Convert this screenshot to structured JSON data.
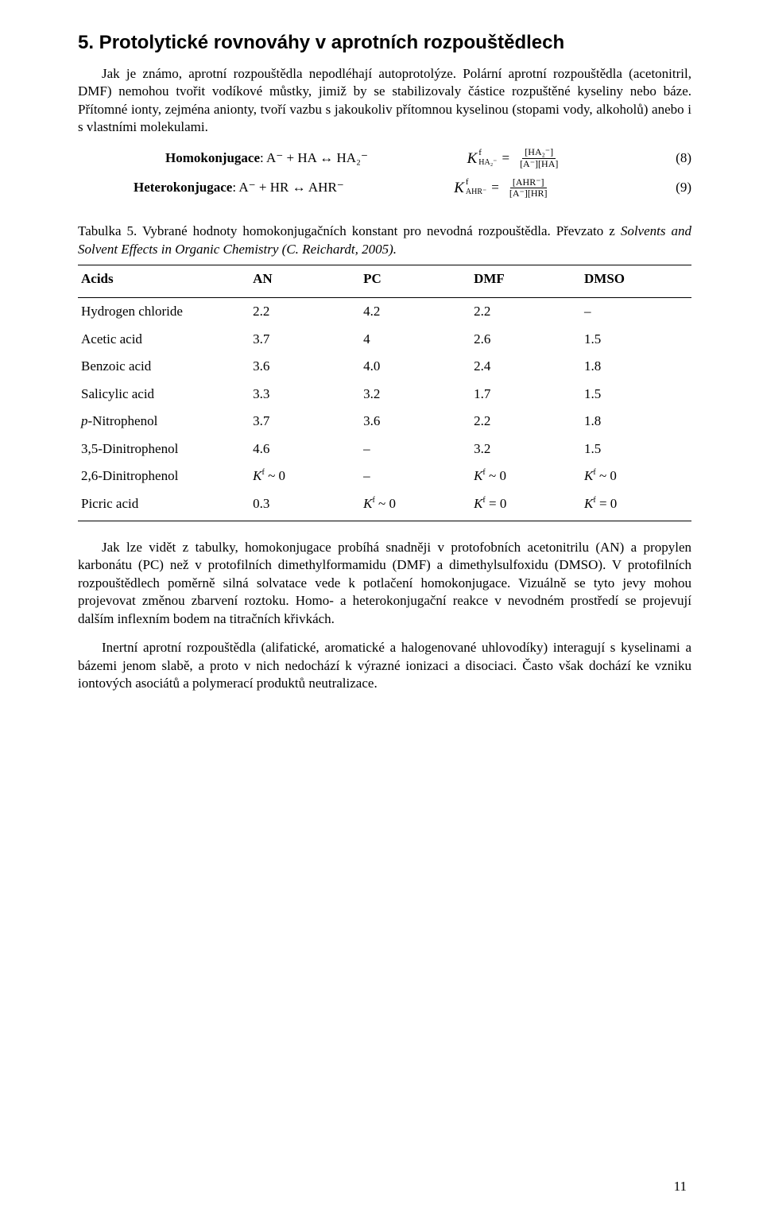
{
  "heading": "5. Protolytické rovnováhy v aprotních rozpouštědlech",
  "p1": "Jak je známo, aprotní rozpouštědla nepodléhají autoprotolýze. Polární aprotní rozpouštědla (acetonitril, DMF) nemohou tvořit vodíkové můstky, jimiž by se stabilizovaly částice rozpuštěné kyseliny nebo báze. Přítomné ionty, zejména anionty, tvoří vazbu s jakoukoliv přítomnou kyselinou (stopami vody, alkoholů) anebo i s vlastními molekulami.",
  "eq1": {
    "label": "Homokonjugace",
    "lhs": ": A⁻ + HA ↔ HA₂⁻",
    "k_sub": "HA₂⁻",
    "num": "[HA₂⁻]",
    "den": "[A⁻][HA]",
    "tag": "(8)"
  },
  "eq2": {
    "label": "Heterokonjugace",
    "lhs": ": A⁻ + HR ↔ AHR⁻",
    "k_sub": "AHR⁻",
    "num": "[AHR⁻]",
    "den": "[A⁻][HR]",
    "tag": "(9)"
  },
  "caption": {
    "pre": "Tabulka 5. Vybrané hodnoty homokonjugačních konstant pro nevodná rozpouštědla. Převzato z ",
    "ital": "Solvents and Solvent Effects in Organic Chemistry (C. Reichardt, 2005).",
    "post": ""
  },
  "table": {
    "columns": [
      "Acids",
      "AN",
      "PC",
      "DMF",
      "DMSO"
    ],
    "rows": [
      [
        "Hydrogen chloride",
        "2.2",
        "4.2",
        "2.2",
        "–"
      ],
      [
        "Acetic acid",
        "3.7",
        "4",
        "2.6",
        "1.5"
      ],
      [
        "Benzoic acid",
        "3.6",
        "4.0",
        "2.4",
        "1.8"
      ],
      [
        "Salicylic acid",
        "3.3",
        "3.2",
        "1.7",
        "1.5"
      ],
      [
        "p-Nitrophenol",
        "3.7",
        "3.6",
        "2.2",
        "1.8"
      ],
      [
        "3,5-Dinitrophenol",
        "4.6",
        "–",
        "3.2",
        "1.5"
      ],
      [
        "2,6-Dinitrophenol",
        "KF0",
        "–",
        "KF0",
        "KF0"
      ],
      [
        "Picric acid",
        "0.3",
        "KF0",
        "KFE",
        "KFE"
      ]
    ],
    "render_map": {
      "KF0": "Kᶠ ~ 0",
      "KFE": "Kᶠ = 0"
    }
  },
  "p2": "Jak lze vidět z tabulky, homokonjugace probíhá snadněji v protofobních acetonitrilu (AN) a propylen karbonátu (PC) než v protofilních dimethylformamidu (DMF) a dimethylsulfoxidu (DMSO). V protofilních rozpouštědlech poměrně silná solvatace vede k potlačení homokonjugace. Vizuálně se tyto jevy mohou projevovat změnou zbarvení roztoku. Homo- a heterokonjugační reakce v nevodném prostředí se projevují dalším inflexním bodem na titračních křivkách.",
  "p3": "Inertní aprotní rozpouštědla (alifatické, aromatické a halogenované uhlovodíky) interagují s kyselinami a bázemi jenom slabě, a proto v nich nedochází k výrazné ionizaci a disociaci. Často však dochází ke vzniku iontových asociátů a polymerací produktů neutralizace.",
  "page": "11"
}
